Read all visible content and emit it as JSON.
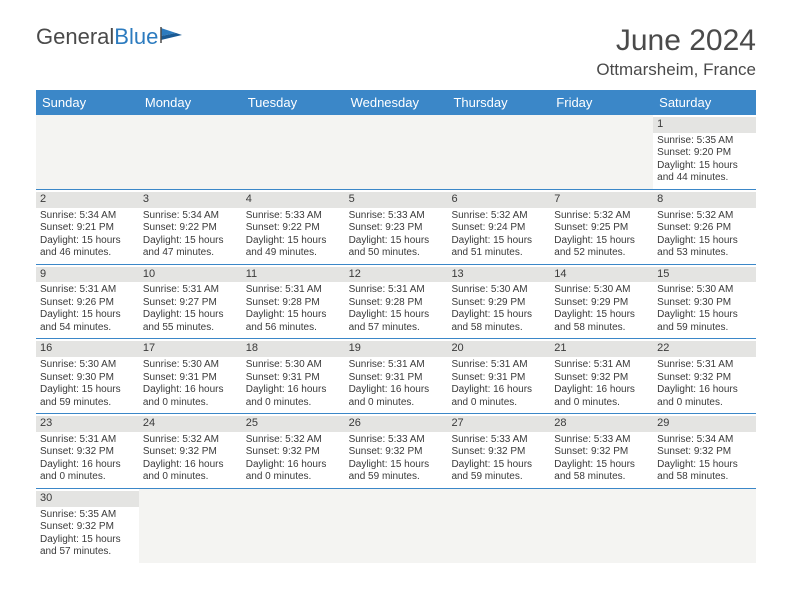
{
  "logo": {
    "text1": "General",
    "text2": "Blue"
  },
  "title": "June 2024",
  "location": "Ottmarsheim, France",
  "colors": {
    "header_bg": "#3b87c8",
    "header_text": "#ffffff",
    "daynum_bg": "#e4e4e2",
    "text": "#3a3a3a",
    "border": "#3b87c8"
  },
  "day_names": [
    "Sunday",
    "Monday",
    "Tuesday",
    "Wednesday",
    "Thursday",
    "Friday",
    "Saturday"
  ],
  "weeks": [
    [
      null,
      null,
      null,
      null,
      null,
      null,
      {
        "d": "1",
        "sr": "5:35 AM",
        "ss": "9:20 PM",
        "dl": "15 hours and 44 minutes."
      }
    ],
    [
      {
        "d": "2",
        "sr": "5:34 AM",
        "ss": "9:21 PM",
        "dl": "15 hours and 46 minutes."
      },
      {
        "d": "3",
        "sr": "5:34 AM",
        "ss": "9:22 PM",
        "dl": "15 hours and 47 minutes."
      },
      {
        "d": "4",
        "sr": "5:33 AM",
        "ss": "9:22 PM",
        "dl": "15 hours and 49 minutes."
      },
      {
        "d": "5",
        "sr": "5:33 AM",
        "ss": "9:23 PM",
        "dl": "15 hours and 50 minutes."
      },
      {
        "d": "6",
        "sr": "5:32 AM",
        "ss": "9:24 PM",
        "dl": "15 hours and 51 minutes."
      },
      {
        "d": "7",
        "sr": "5:32 AM",
        "ss": "9:25 PM",
        "dl": "15 hours and 52 minutes."
      },
      {
        "d": "8",
        "sr": "5:32 AM",
        "ss": "9:26 PM",
        "dl": "15 hours and 53 minutes."
      }
    ],
    [
      {
        "d": "9",
        "sr": "5:31 AM",
        "ss": "9:26 PM",
        "dl": "15 hours and 54 minutes."
      },
      {
        "d": "10",
        "sr": "5:31 AM",
        "ss": "9:27 PM",
        "dl": "15 hours and 55 minutes."
      },
      {
        "d": "11",
        "sr": "5:31 AM",
        "ss": "9:28 PM",
        "dl": "15 hours and 56 minutes."
      },
      {
        "d": "12",
        "sr": "5:31 AM",
        "ss": "9:28 PM",
        "dl": "15 hours and 57 minutes."
      },
      {
        "d": "13",
        "sr": "5:30 AM",
        "ss": "9:29 PM",
        "dl": "15 hours and 58 minutes."
      },
      {
        "d": "14",
        "sr": "5:30 AM",
        "ss": "9:29 PM",
        "dl": "15 hours and 58 minutes."
      },
      {
        "d": "15",
        "sr": "5:30 AM",
        "ss": "9:30 PM",
        "dl": "15 hours and 59 minutes."
      }
    ],
    [
      {
        "d": "16",
        "sr": "5:30 AM",
        "ss": "9:30 PM",
        "dl": "15 hours and 59 minutes."
      },
      {
        "d": "17",
        "sr": "5:30 AM",
        "ss": "9:31 PM",
        "dl": "16 hours and 0 minutes."
      },
      {
        "d": "18",
        "sr": "5:30 AM",
        "ss": "9:31 PM",
        "dl": "16 hours and 0 minutes."
      },
      {
        "d": "19",
        "sr": "5:31 AM",
        "ss": "9:31 PM",
        "dl": "16 hours and 0 minutes."
      },
      {
        "d": "20",
        "sr": "5:31 AM",
        "ss": "9:31 PM",
        "dl": "16 hours and 0 minutes."
      },
      {
        "d": "21",
        "sr": "5:31 AM",
        "ss": "9:32 PM",
        "dl": "16 hours and 0 minutes."
      },
      {
        "d": "22",
        "sr": "5:31 AM",
        "ss": "9:32 PM",
        "dl": "16 hours and 0 minutes."
      }
    ],
    [
      {
        "d": "23",
        "sr": "5:31 AM",
        "ss": "9:32 PM",
        "dl": "16 hours and 0 minutes."
      },
      {
        "d": "24",
        "sr": "5:32 AM",
        "ss": "9:32 PM",
        "dl": "16 hours and 0 minutes."
      },
      {
        "d": "25",
        "sr": "5:32 AM",
        "ss": "9:32 PM",
        "dl": "16 hours and 0 minutes."
      },
      {
        "d": "26",
        "sr": "5:33 AM",
        "ss": "9:32 PM",
        "dl": "15 hours and 59 minutes."
      },
      {
        "d": "27",
        "sr": "5:33 AM",
        "ss": "9:32 PM",
        "dl": "15 hours and 59 minutes."
      },
      {
        "d": "28",
        "sr": "5:33 AM",
        "ss": "9:32 PM",
        "dl": "15 hours and 58 minutes."
      },
      {
        "d": "29",
        "sr": "5:34 AM",
        "ss": "9:32 PM",
        "dl": "15 hours and 58 minutes."
      }
    ],
    [
      {
        "d": "30",
        "sr": "5:35 AM",
        "ss": "9:32 PM",
        "dl": "15 hours and 57 minutes."
      },
      null,
      null,
      null,
      null,
      null,
      null
    ]
  ],
  "labels": {
    "sunrise": "Sunrise: ",
    "sunset": "Sunset: ",
    "daylight": "Daylight: "
  }
}
